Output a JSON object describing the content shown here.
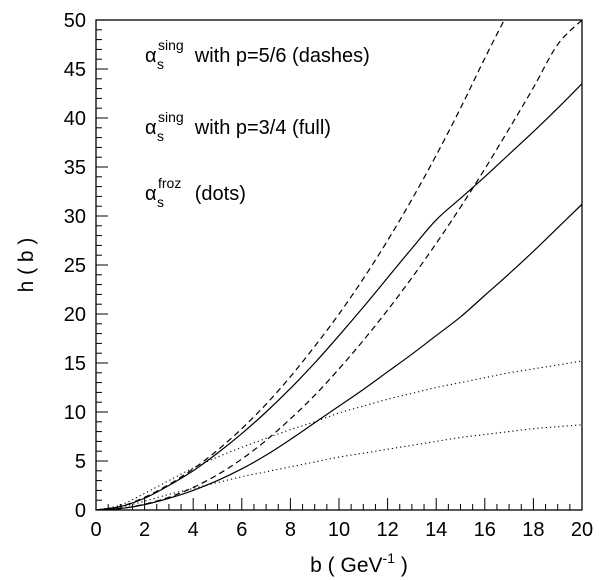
{
  "chart_data": {
    "type": "line",
    "xlabel_main": "b ( GeV",
    "xlabel_sup": "-1",
    "xlabel_end": " )",
    "ylabel": "h ( b )",
    "xlim": [
      0,
      20
    ],
    "ylim": [
      0,
      50
    ],
    "x_ticks": [
      0,
      2,
      4,
      6,
      8,
      10,
      12,
      14,
      16,
      18,
      20
    ],
    "y_ticks": [
      0,
      5,
      10,
      15,
      20,
      25,
      30,
      35,
      40,
      45,
      50
    ],
    "grid": false,
    "legend": [
      {
        "symbol": "α",
        "sub": "s",
        "sup": "sing",
        "text": " with p=5/6 (dashes)"
      },
      {
        "symbol": "α",
        "sub": "s",
        "sup": "sing",
        "text": " with p=3/4 (full)"
      },
      {
        "symbol": "α",
        "sub": "s",
        "sup": "froz",
        "text": " (dots)"
      }
    ],
    "series": [
      {
        "style": "dashed",
        "x": [
          0,
          1,
          2,
          3,
          4,
          5,
          6,
          7,
          8,
          9,
          10,
          11,
          12,
          13,
          14,
          15,
          16,
          16.8
        ],
        "y": [
          0,
          0.35,
          1.3,
          2.6,
          4.2,
          6.1,
          8.3,
          10.8,
          13.6,
          16.7,
          20.0,
          23.6,
          27.5,
          31.7,
          36.2,
          41.0,
          46.1,
          50.0
        ]
      },
      {
        "style": "dashed",
        "x": [
          0,
          1,
          2,
          3,
          4,
          5,
          6,
          7,
          8,
          9,
          10,
          11,
          12,
          13,
          14,
          15,
          16,
          17,
          18,
          19,
          20
        ],
        "y": [
          0,
          0.15,
          0.6,
          1.3,
          2.3,
          3.6,
          5.2,
          7.1,
          9.3,
          11.7,
          14.4,
          17.3,
          20.4,
          23.7,
          27.2,
          30.9,
          34.8,
          38.9,
          43.1,
          47.5,
          50.0
        ]
      },
      {
        "style": "solid",
        "x": [
          0,
          1,
          2,
          3,
          4,
          5,
          6,
          7,
          8,
          9,
          10,
          11,
          12,
          13,
          14,
          15,
          16,
          17,
          18,
          19,
          20
        ],
        "y": [
          0,
          0.35,
          1.2,
          2.5,
          4.0,
          5.8,
          7.8,
          10.0,
          12.4,
          15.0,
          17.8,
          20.7,
          23.7,
          26.7,
          29.6,
          31.8,
          34.0,
          36.3,
          38.6,
          41.0,
          43.5
        ]
      },
      {
        "style": "solid",
        "x": [
          0,
          1,
          2,
          3,
          4,
          5,
          6,
          7,
          8,
          9,
          10,
          11,
          12,
          13,
          14,
          15,
          16,
          17,
          18,
          19,
          20
        ],
        "y": [
          0,
          0.15,
          0.55,
          1.2,
          2.0,
          3.0,
          4.2,
          5.6,
          7.2,
          8.9,
          10.6,
          12.3,
          14.1,
          15.9,
          17.8,
          19.7,
          21.9,
          24.1,
          26.4,
          28.8,
          31.2
        ]
      },
      {
        "style": "dotted",
        "x": [
          0,
          1,
          2,
          3,
          4,
          5,
          6,
          7,
          8,
          9,
          10,
          11,
          12,
          13,
          14,
          15,
          16,
          17,
          18,
          19,
          20
        ],
        "y": [
          0,
          0.5,
          1.7,
          3.0,
          4.3,
          5.4,
          6.4,
          7.3,
          8.2,
          9.0,
          9.9,
          10.6,
          11.3,
          11.9,
          12.5,
          13.0,
          13.5,
          14.0,
          14.4,
          14.8,
          15.2
        ]
      },
      {
        "style": "dotted",
        "x": [
          0,
          1,
          2,
          3,
          4,
          5,
          6,
          7,
          8,
          9,
          10,
          11,
          12,
          13,
          14,
          15,
          16,
          17,
          18,
          19,
          20
        ],
        "y": [
          0,
          0.3,
          0.9,
          1.6,
          2.2,
          2.8,
          3.4,
          3.9,
          4.4,
          4.9,
          5.4,
          5.8,
          6.2,
          6.6,
          7.0,
          7.4,
          7.7,
          8.0,
          8.3,
          8.5,
          8.7
        ]
      }
    ]
  }
}
